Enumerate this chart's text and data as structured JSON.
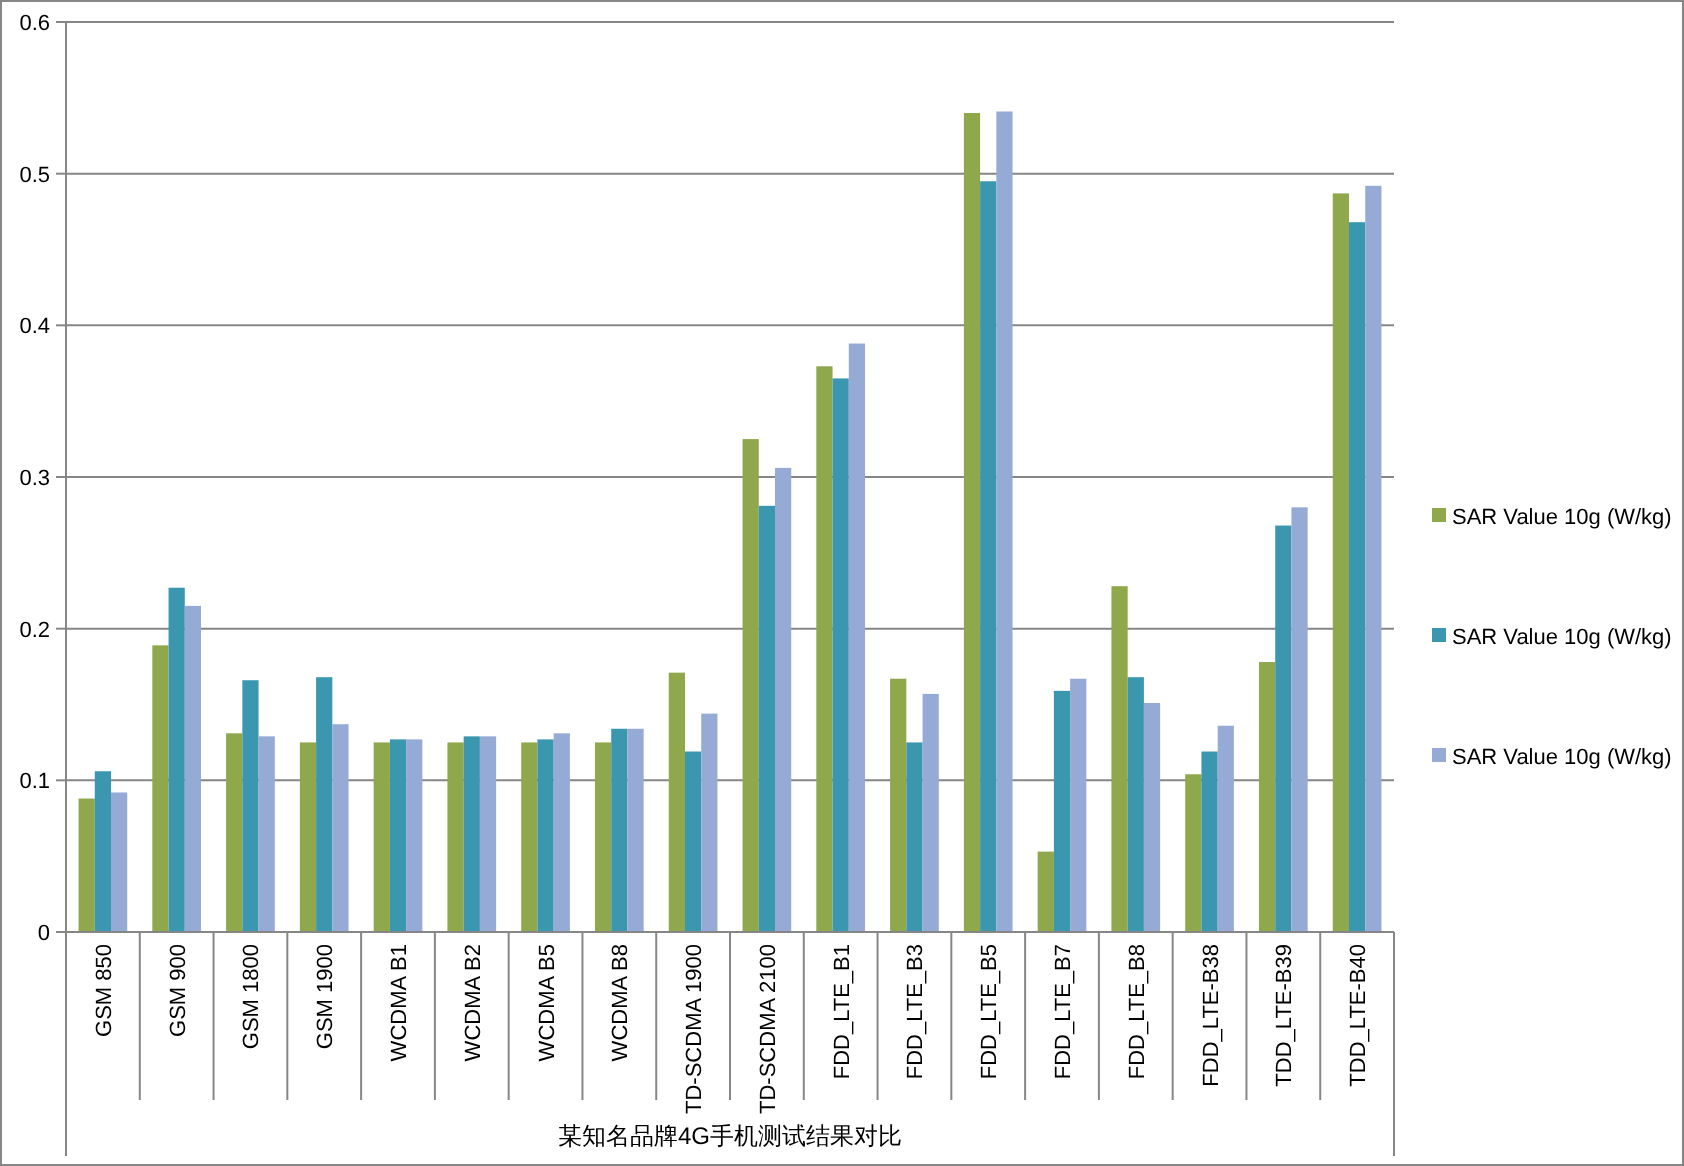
{
  "chart_data": {
    "type": "bar",
    "xlabel": "某知名品牌4G手机测试结果对比",
    "categories": [
      "GSM 850",
      "GSM 900",
      "GSM 1800",
      "GSM 1900",
      "WCDMA B1",
      "WCDMA B2",
      "WCDMA B5",
      "WCDMA B8",
      "TD-SCDMA 1900",
      "TD-SCDMA 2100",
      "FDD_LTE_B1",
      "FDD_LTE_B3",
      "FDD_LTE_B5",
      "FDD_LTE_B7",
      "FDD_LTE_B8",
      "FDD_LTE-B38",
      "TDD_LTE-B39",
      "TDD_LTE-B40"
    ],
    "series": [
      {
        "name": "SAR Value 10g (W/kg)",
        "color": "#8ea84b",
        "values": [
          0.088,
          0.189,
          0.131,
          0.125,
          0.125,
          0.125,
          0.125,
          0.125,
          0.171,
          0.325,
          0.373,
          0.167,
          0.54,
          0.053,
          0.228,
          0.104,
          0.178,
          0.487
        ]
      },
      {
        "name": "SAR Value 10g (W/kg)",
        "color": "#3b97b0",
        "values": [
          0.106,
          0.227,
          0.166,
          0.168,
          0.127,
          0.129,
          0.127,
          0.134,
          0.119,
          0.281,
          0.365,
          0.125,
          0.495,
          0.159,
          0.168,
          0.119,
          0.268,
          0.468
        ]
      },
      {
        "name": "SAR Value 10g (W/kg)",
        "color": "#96aad6",
        "values": [
          0.092,
          0.215,
          0.129,
          0.137,
          0.127,
          0.129,
          0.131,
          0.134,
          0.144,
          0.306,
          0.388,
          0.157,
          0.541,
          0.167,
          0.151,
          0.136,
          0.28,
          0.492
        ]
      }
    ],
    "ylim": [
      0,
      0.6
    ],
    "yticks": [
      0,
      0.1,
      0.2,
      0.3,
      0.4,
      0.5,
      0.6
    ],
    "grid": "y",
    "legend": "right"
  }
}
